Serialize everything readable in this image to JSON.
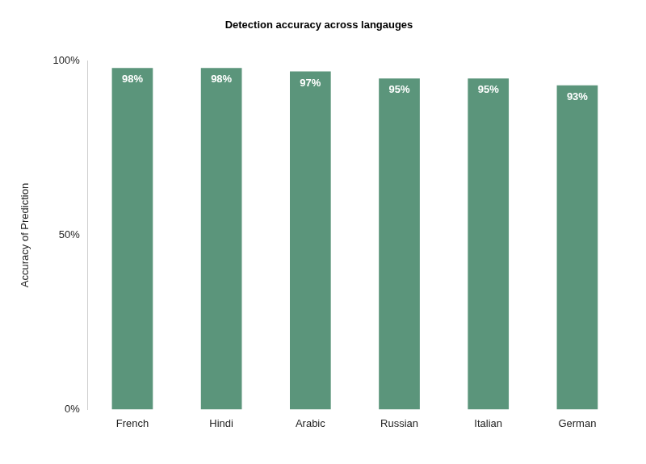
{
  "chart_data": {
    "type": "bar",
    "title": "Detection accuracy across langauges",
    "y_label": "Accuracy of Prediction",
    "categories": [
      "French",
      "Hindi",
      "Arabic",
      "Russian",
      "Italian",
      "German"
    ],
    "values": [
      98,
      98,
      97,
      95,
      95,
      93
    ],
    "value_labels": [
      "98%",
      "98%",
      "97%",
      "95%",
      "95%",
      "93%"
    ],
    "color": "#5b957b",
    "ylim": [
      0,
      100
    ],
    "yticks": [
      {
        "value": 0,
        "label": "0%"
      },
      {
        "value": 50,
        "label": "50%"
      },
      {
        "value": 100,
        "label": "100%"
      }
    ],
    "grid": false,
    "data_labels": true
  }
}
